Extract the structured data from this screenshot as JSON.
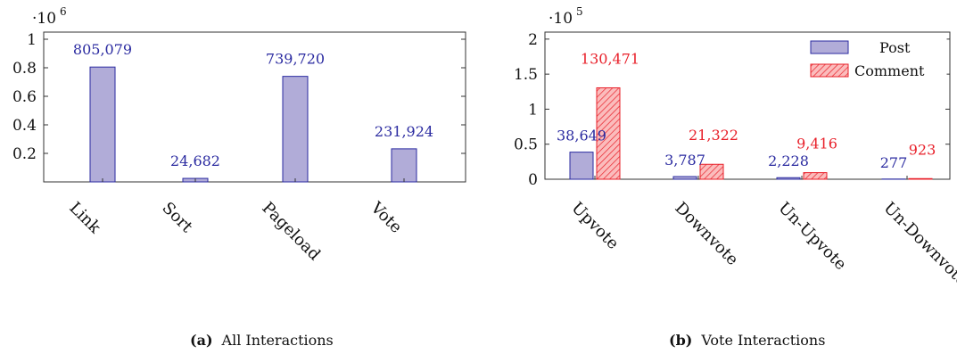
{
  "chart_data": [
    {
      "type": "bar",
      "title": "",
      "scale_label": "·10",
      "scale_exponent": "6",
      "categories": [
        "Link",
        "Sort",
        "Pageload",
        "Vote"
      ],
      "series": [
        {
          "values": [
            805079,
            24682,
            739720,
            231924
          ],
          "labels": [
            "805,079",
            "24,682",
            "739,720",
            "231,924"
          ]
        }
      ],
      "ylim": [
        0,
        1050000
      ],
      "yticks": [
        200000,
        400000,
        600000,
        800000,
        1000000
      ],
      "ytick_labels": [
        "0.2",
        "0.4",
        "0.6",
        "0.8",
        "1"
      ],
      "colors": {
        "fill": "#b1acd8",
        "stroke": "#2a2aa0",
        "label": "#2a2aa0"
      },
      "grid": false
    },
    {
      "type": "bar",
      "title": "",
      "scale_label": "·10",
      "scale_exponent": "5",
      "categories": [
        "Upvote",
        "Downvote",
        "Un-Upvote",
        "Un-Downvote"
      ],
      "series": [
        {
          "name": "Post",
          "values": [
            38649,
            3787,
            2228,
            277
          ],
          "labels": [
            "38,649",
            "3,787",
            "2,228",
            "277"
          ]
        },
        {
          "name": "Comment",
          "values": [
            130471,
            21322,
            9416,
            923
          ],
          "labels": [
            "130,471",
            "21,322",
            "9,416",
            "923"
          ]
        }
      ],
      "ylim": [
        0,
        210000
      ],
      "yticks": [
        0,
        50000,
        100000,
        150000,
        200000
      ],
      "ytick_labels": [
        "0",
        "0.5",
        "1",
        "1.5",
        "2"
      ],
      "legend_position": "top-right",
      "colors": {
        "post_fill": "#b1acd8",
        "post_stroke": "#2a2aa0",
        "comment_fill": "#fbbcbc",
        "comment_stroke": "#e8202a"
      },
      "grid": false
    }
  ],
  "captions": [
    {
      "tag": "(a)",
      "text": "All Interactions"
    },
    {
      "tag": "(b)",
      "text": "Vote Interactions"
    }
  ]
}
